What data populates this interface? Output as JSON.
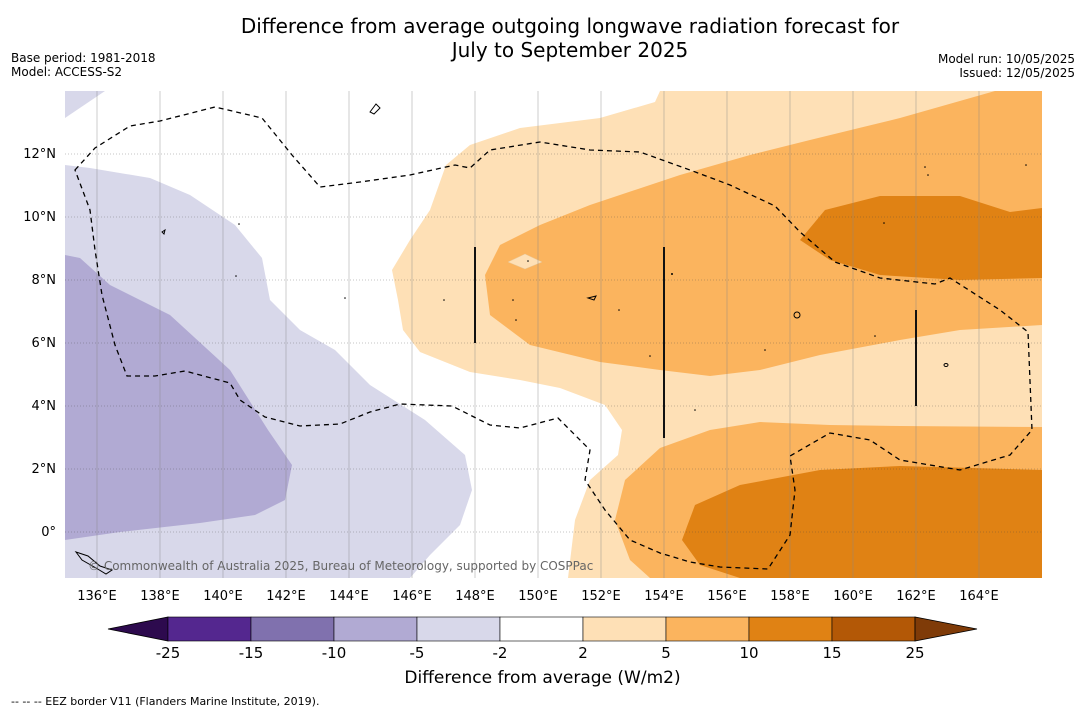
{
  "header": {
    "title_line1": "Difference from average outgoing longwave radiation forecast for",
    "title_line2": "July to September 2025",
    "base_period": "Base period: 1981-2018",
    "model": "Model: ACCESS-S2",
    "model_run": "Model run: 10/05/2025",
    "issued": "Issued: 12/05/2025"
  },
  "map": {
    "lat_labels": [
      "12°N",
      "10°N",
      "8°N",
      "6°N",
      "4°N",
      "2°N",
      "0°"
    ],
    "lon_labels": [
      "136°E",
      "138°E",
      "140°E",
      "142°E",
      "144°E",
      "146°E",
      "148°E",
      "150°E",
      "152°E",
      "154°E",
      "156°E",
      "158°E",
      "160°E",
      "162°E",
      "164°E"
    ],
    "copyright": "© Commonwealth of Australia 2025, Bureau of Meteorology, supported by COSPPac"
  },
  "colorbar": {
    "label": "Difference from average (W/m2)",
    "ticks": [
      "-25",
      "-15",
      "-10",
      "-5",
      "-2",
      "2",
      "5",
      "10",
      "15",
      "25"
    ],
    "colors": [
      "#2d0a4e",
      "#54278f",
      "#8071ae",
      "#b1aad3",
      "#d8d8ea",
      "#ffffff",
      "#fee0b6",
      "#fbb45e",
      "#e08214",
      "#b35806",
      "#7f3b08"
    ]
  },
  "footnote": "--  --  -- EEZ border V11 (Flanders Marine Institute, 2019)."
}
